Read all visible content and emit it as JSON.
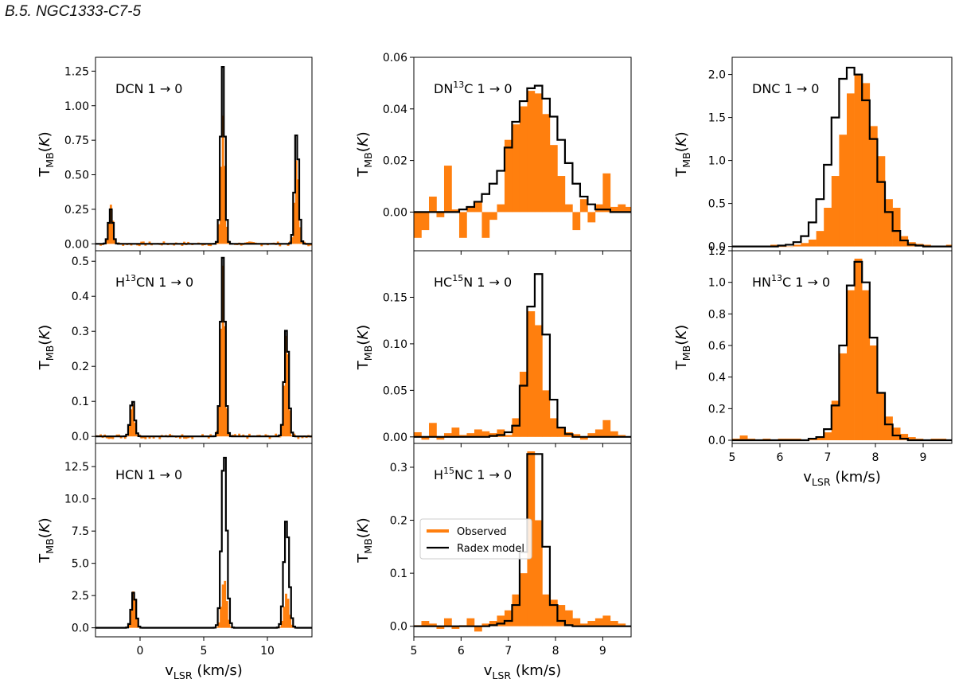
{
  "page_title": "B.5. NGC1333-C7-5",
  "colors": {
    "observed": "#ff7f0e",
    "model": "#000000"
  },
  "legend": {
    "observed": "Observed",
    "model": "Radex model"
  },
  "chart_data": [
    {
      "type": "step",
      "id": "dcn",
      "label": "DCN 1 → 0",
      "label_parts": [
        {
          "t": "DCN 1 → 0"
        }
      ],
      "ylabel": "T_MB(K)",
      "xlim": [
        -3.5,
        13.5
      ],
      "ylim": [
        -0.05,
        1.35
      ],
      "yticks": [
        0,
        0.25,
        0.5,
        0.75,
        1.0,
        1.25
      ],
      "ytick_labels": [
        "0.00",
        "0.25",
        "0.50",
        "0.75",
        "1.00",
        "1.25"
      ],
      "xticks": [
        0,
        5,
        10
      ],
      "xtick_labels": [
        "0",
        "5",
        "10"
      ],
      "show_xticklabels": false,
      "xlabel": "",
      "lines": [
        {
          "center": -2.3,
          "sigma": 0.16,
          "peak_obs": 0.27,
          "peak_mod": 0.25
        },
        {
          "center": 6.5,
          "sigma": 0.16,
          "peak_obs": 0.93,
          "peak_mod": 1.28
        },
        {
          "center": 12.3,
          "sigma": 0.16,
          "peak_obs": 0.62,
          "peak_mod": 0.81
        }
      ],
      "step": 0.16,
      "noise": 0.018
    },
    {
      "type": "step",
      "id": "h13cn",
      "label": "H13CN 1 → 0",
      "label_parts": [
        {
          "t": "H"
        },
        {
          "t": "13",
          "sup": true
        },
        {
          "t": "CN 1 → 0"
        }
      ],
      "ylabel": "T_MB(K)",
      "xlim": [
        -3.5,
        13.5
      ],
      "ylim": [
        -0.02,
        0.53
      ],
      "yticks": [
        0,
        0.1,
        0.2,
        0.3,
        0.4,
        0.5
      ],
      "ytick_labels": [
        "0.0",
        "0.1",
        "0.2",
        "0.3",
        "0.4",
        "0.5"
      ],
      "xticks": [
        0,
        5,
        10
      ],
      "xtick_labels": [
        "0",
        "5",
        "10"
      ],
      "show_xticklabels": false,
      "xlabel": "",
      "lines": [
        {
          "center": -0.6,
          "sigma": 0.17,
          "peak_obs": 0.1,
          "peak_mod": 0.105
        },
        {
          "center": 6.5,
          "sigma": 0.17,
          "peak_obs": 0.48,
          "peak_mod": 0.51
        },
        {
          "center": 11.5,
          "sigma": 0.17,
          "peak_obs": 0.3,
          "peak_mod": 0.31
        }
      ],
      "step": 0.16,
      "noise": 0.008
    },
    {
      "type": "step",
      "id": "hcn",
      "label": "HCN 1 → 0",
      "label_parts": [
        {
          "t": "HCN 1 → 0"
        }
      ],
      "ylabel": "T_MB(K)",
      "xlim": [
        -3.5,
        13.5
      ],
      "ylim": [
        -0.7,
        14.3
      ],
      "yticks": [
        0,
        2.5,
        5,
        7.5,
        10,
        12.5
      ],
      "ytick_labels": [
        "0.0",
        "2.5",
        "5.0",
        "7.5",
        "10.0",
        "12.5"
      ],
      "xticks": [
        0,
        5,
        10
      ],
      "xtick_labels": [
        "0",
        "5",
        "10"
      ],
      "show_xticklabels": true,
      "xlabel": "v_LSR (km/s)",
      "lines": [
        {
          "center": -0.5,
          "sigma": 0.17,
          "peak_obs": 2.9,
          "peak_mod": 2.8
        },
        {
          "center": 6.6,
          "sigma": 0.2,
          "peak_obs": 3.8,
          "peak_mod": 13.8
        },
        {
          "center": 11.5,
          "sigma": 0.2,
          "peak_obs": 2.7,
          "peak_mod": 8.4
        }
      ],
      "step": 0.16,
      "noise": 0.0
    },
    {
      "type": "step",
      "id": "dn13c",
      "label": "DN13C 1 → 0",
      "label_parts": [
        {
          "t": "DN"
        },
        {
          "t": "13",
          "sup": true
        },
        {
          "t": "C 1 → 0"
        }
      ],
      "ylabel": "T_MB(K)",
      "xlim": [
        5.0,
        9.6
      ],
      "ylim": [
        -0.015,
        0.06
      ],
      "yticks": [
        0,
        0.02,
        0.04,
        0.06
      ],
      "ytick_labels": [
        "0.00",
        "0.02",
        "0.04",
        "0.06"
      ],
      "xticks": [
        5,
        6,
        7,
        8,
        9
      ],
      "xtick_labels": [
        "5",
        "6",
        "7",
        "8",
        "9"
      ],
      "show_xticklabels": false,
      "xlabel": "",
      "bins": [
        5.0,
        5.16,
        5.32,
        5.48,
        5.64,
        5.8,
        5.96,
        6.12,
        6.28,
        6.44,
        6.6,
        6.76,
        6.92,
        7.08,
        7.24,
        7.4,
        7.56,
        7.72,
        7.88,
        8.04,
        8.2,
        8.36,
        8.52,
        8.68,
        8.84,
        9.0,
        9.16,
        9.32,
        9.48,
        9.6
      ],
      "obs": [
        -0.01,
        -0.007,
        0.006,
        -0.002,
        0.018,
        0.001,
        -0.01,
        0.002,
        0.004,
        -0.01,
        -0.003,
        0.003,
        0.028,
        0.034,
        0.041,
        0.047,
        0.046,
        0.038,
        0.026,
        0.014,
        0.003,
        -0.007,
        0.005,
        -0.004,
        0.003,
        0.015,
        0.002,
        0.003,
        0.002
      ],
      "mod": [
        0.0,
        0.0,
        0.0,
        0.0,
        0.0,
        0.0,
        0.001,
        0.002,
        0.004,
        0.007,
        0.011,
        0.016,
        0.025,
        0.035,
        0.043,
        0.048,
        0.049,
        0.044,
        0.037,
        0.028,
        0.019,
        0.011,
        0.006,
        0.003,
        0.001,
        0.001,
        0.0,
        0.0,
        0.0
      ]
    },
    {
      "type": "step",
      "id": "hc15n",
      "label": "HC15N 1 → 0",
      "label_parts": [
        {
          "t": "HC"
        },
        {
          "t": "15",
          "sup": true
        },
        {
          "t": "N 1 → 0"
        }
      ],
      "ylabel": "T_MB(K)",
      "xlim": [
        5.0,
        9.6
      ],
      "ylim": [
        -0.007,
        0.2
      ],
      "yticks": [
        0,
        0.05,
        0.1,
        0.15
      ],
      "ytick_labels": [
        "0.00",
        "0.05",
        "0.10",
        "0.15"
      ],
      "xticks": [
        5,
        6,
        7,
        8,
        9
      ],
      "xtick_labels": [
        "5",
        "6",
        "7",
        "8",
        "9"
      ],
      "show_xticklabels": false,
      "xlabel": "",
      "bins": [
        5.0,
        5.16,
        5.32,
        5.48,
        5.64,
        5.8,
        5.96,
        6.12,
        6.28,
        6.44,
        6.6,
        6.76,
        6.92,
        7.08,
        7.24,
        7.4,
        7.56,
        7.72,
        7.88,
        8.04,
        8.2,
        8.36,
        8.52,
        8.68,
        8.84,
        9.0,
        9.16,
        9.32,
        9.48,
        9.6
      ],
      "obs": [
        0.005,
        -0.003,
        0.015,
        -0.003,
        0.004,
        0.01,
        0.002,
        0.004,
        0.008,
        0.006,
        0.004,
        0.008,
        0.002,
        0.02,
        0.07,
        0.135,
        0.12,
        0.05,
        0.02,
        0.01,
        0.005,
        0.003,
        -0.003,
        0.004,
        0.008,
        0.018,
        0.006,
        0.002,
        0.0
      ],
      "mod": [
        0.0,
        0.0,
        0.0,
        0.0,
        0.0,
        0.0,
        0.0,
        0.0,
        0.0,
        0.0,
        0.001,
        0.002,
        0.005,
        0.012,
        0.055,
        0.14,
        0.175,
        0.11,
        0.04,
        0.01,
        0.003,
        0.0,
        0.0,
        0.0,
        0.0,
        0.0,
        0.0,
        0.0,
        0.0
      ]
    },
    {
      "type": "step",
      "id": "h15nc",
      "label": "H15NC 1 → 0",
      "label_parts": [
        {
          "t": "H"
        },
        {
          "t": "15",
          "sup": true
        },
        {
          "t": "NC 1 → 0"
        }
      ],
      "ylabel": "T_MB(K)",
      "xlim": [
        5.0,
        9.6
      ],
      "ylim": [
        -0.02,
        0.345
      ],
      "yticks": [
        0,
        0.1,
        0.2,
        0.3
      ],
      "ytick_labels": [
        "0.0",
        "0.1",
        "0.2",
        "0.3"
      ],
      "xticks": [
        5,
        6,
        7,
        8,
        9
      ],
      "xtick_labels": [
        "5",
        "6",
        "7",
        "8",
        "9"
      ],
      "show_xticklabels": true,
      "xlabel": "v_LSR (km/s)",
      "bins": [
        5.0,
        5.16,
        5.32,
        5.48,
        5.64,
        5.8,
        5.96,
        6.12,
        6.28,
        6.44,
        6.6,
        6.76,
        6.92,
        7.08,
        7.24,
        7.4,
        7.56,
        7.72,
        7.88,
        8.04,
        8.2,
        8.36,
        8.52,
        8.68,
        8.84,
        9.0,
        9.16,
        9.32,
        9.48,
        9.6
      ],
      "obs": [
        0.002,
        0.01,
        0.005,
        -0.005,
        0.015,
        -0.005,
        0.002,
        0.015,
        -0.01,
        0.005,
        0.01,
        0.02,
        0.03,
        0.06,
        0.1,
        0.33,
        0.2,
        0.06,
        0.05,
        0.04,
        0.03,
        0.015,
        0.005,
        0.01,
        0.015,
        0.02,
        0.01,
        0.005,
        0.0
      ],
      "mod": [
        0.0,
        0.0,
        0.0,
        0.0,
        0.0,
        0.0,
        0.0,
        0.0,
        0.0,
        0.0,
        0.002,
        0.005,
        0.01,
        0.04,
        0.14,
        0.325,
        0.325,
        0.15,
        0.04,
        0.01,
        0.002,
        0.0,
        0.0,
        0.0,
        0.0,
        0.0,
        0.0,
        0.0,
        0.0
      ],
      "legend": true
    },
    {
      "type": "step",
      "id": "dnc",
      "label": "DNC 1 → 0",
      "label_parts": [
        {
          "t": "DNC 1 → 0"
        }
      ],
      "ylabel": "T_MB(K)",
      "xlim": [
        5.0,
        9.6
      ],
      "ylim": [
        -0.05,
        2.2
      ],
      "yticks": [
        0,
        0.5,
        1.0,
        1.5,
        2.0
      ],
      "ytick_labels": [
        "0.0",
        "0.5",
        "1.0",
        "1.5",
        "2.0"
      ],
      "xticks": [
        5,
        6,
        7,
        8,
        9
      ],
      "xtick_labels": [
        "5",
        "6",
        "7",
        "8",
        "9"
      ],
      "show_xticklabels": false,
      "xlabel": "",
      "bins": [
        5.0,
        5.16,
        5.32,
        5.48,
        5.64,
        5.8,
        5.96,
        6.12,
        6.28,
        6.44,
        6.6,
        6.76,
        6.92,
        7.08,
        7.24,
        7.4,
        7.56,
        7.72,
        7.88,
        8.04,
        8.2,
        8.36,
        8.52,
        8.68,
        8.84,
        9.0,
        9.16,
        9.32,
        9.48,
        9.6
      ],
      "obs": [
        0.01,
        0.01,
        0.0,
        0.0,
        0.0,
        0.02,
        0.0,
        0.0,
        0.02,
        0.04,
        0.08,
        0.18,
        0.45,
        0.82,
        1.3,
        1.78,
        2.0,
        1.9,
        1.4,
        1.05,
        0.55,
        0.45,
        0.12,
        0.05,
        0.03,
        0.02,
        0.01,
        0.01,
        0.02
      ],
      "mod": [
        0.0,
        0.0,
        0.0,
        0.0,
        0.0,
        0.0,
        0.01,
        0.02,
        0.05,
        0.12,
        0.28,
        0.55,
        0.95,
        1.5,
        1.95,
        2.08,
        2.0,
        1.7,
        1.25,
        0.75,
        0.4,
        0.18,
        0.07,
        0.02,
        0.01,
        0.0,
        0.0,
        0.0,
        0.0
      ]
    },
    {
      "type": "step",
      "id": "hn13c",
      "label": "HN13C 1 → 0",
      "label_parts": [
        {
          "t": "HN"
        },
        {
          "t": "13",
          "sup": true
        },
        {
          "t": "C 1 → 0"
        }
      ],
      "ylabel": "T_MB(K)",
      "xlim": [
        5.0,
        9.6
      ],
      "ylim": [
        -0.02,
        1.2
      ],
      "yticks": [
        0,
        0.2,
        0.4,
        0.6,
        0.8,
        1.0,
        1.2
      ],
      "ytick_labels": [
        "0.0",
        "0.2",
        "0.4",
        "0.6",
        "0.8",
        "1.0",
        "1.2"
      ],
      "xticks": [
        5,
        6,
        7,
        8,
        9
      ],
      "xtick_labels": [
        "5",
        "6",
        "7",
        "8",
        "9"
      ],
      "show_xticklabels": true,
      "xlabel": "v_LSR (km/s)",
      "bins": [
        5.0,
        5.16,
        5.32,
        5.48,
        5.64,
        5.8,
        5.96,
        6.12,
        6.28,
        6.44,
        6.6,
        6.76,
        6.92,
        7.08,
        7.24,
        7.4,
        7.56,
        7.72,
        7.88,
        8.04,
        8.2,
        8.36,
        8.52,
        8.68,
        8.84,
        9.0,
        9.16,
        9.32,
        9.48,
        9.6
      ],
      "obs": [
        0.01,
        0.03,
        0.01,
        0.0,
        0.01,
        0.0,
        0.01,
        0.01,
        0.01,
        0.0,
        0.01,
        0.02,
        0.05,
        0.25,
        0.55,
        0.95,
        1.15,
        0.95,
        0.6,
        0.3,
        0.15,
        0.08,
        0.04,
        0.02,
        0.01,
        0.0,
        0.01,
        0.01,
        0.0
      ],
      "mod": [
        0.0,
        0.0,
        0.0,
        0.0,
        0.0,
        0.0,
        0.0,
        0.0,
        0.0,
        0.0,
        0.01,
        0.02,
        0.07,
        0.22,
        0.6,
        0.98,
        1.13,
        1.0,
        0.65,
        0.3,
        0.1,
        0.03,
        0.01,
        0.0,
        0.0,
        0.0,
        0.0,
        0.0,
        0.0
      ]
    }
  ]
}
